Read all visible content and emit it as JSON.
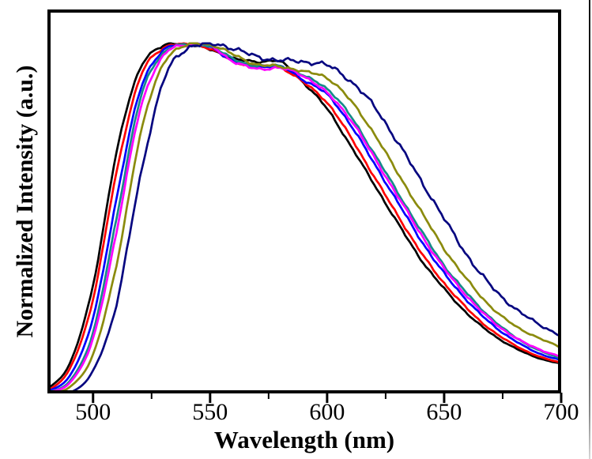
{
  "chart_data": {
    "type": "line",
    "title": "",
    "xlabel": "Wavelength (nm)",
    "ylabel": "Normalized Intensity (a.u.)",
    "xlim_nm": [
      480.5,
      700
    ],
    "ylim": [
      0,
      1.1
    ],
    "x_major_ticks": [
      500,
      550,
      600,
      650,
      700
    ],
    "x_minor_ticks": [
      525,
      575,
      625,
      675
    ],
    "y_ticks": [],
    "grid": false,
    "legend": "none",
    "frame": true,
    "axis_color": "#000000",
    "wavelengths_nm": [
      480,
      490,
      500,
      510,
      520,
      530,
      540,
      550,
      560,
      570,
      580,
      590,
      600,
      610,
      620,
      630,
      640,
      650,
      660,
      670,
      680,
      690,
      700
    ],
    "series": [
      {
        "name": "curve-1-black",
        "color": "#000000",
        "noise": 0.0035,
        "values": [
          0.01,
          0.085,
          0.31,
          0.69,
          0.93,
          0.995,
          1.0,
          0.985,
          0.96,
          0.95,
          0.95,
          0.89,
          0.815,
          0.71,
          0.6,
          0.49,
          0.385,
          0.3,
          0.228,
          0.172,
          0.131,
          0.102,
          0.085
        ]
      },
      {
        "name": "curve-2-red",
        "color": "#fe0000",
        "noise": 0.0035,
        "values": [
          0.004,
          0.07,
          0.27,
          0.633,
          0.903,
          0.989,
          1.0,
          0.988,
          0.951,
          0.938,
          0.933,
          0.891,
          0.833,
          0.735,
          0.622,
          0.512,
          0.405,
          0.316,
          0.242,
          0.182,
          0.139,
          0.107,
          0.088
        ]
      },
      {
        "name": "curve-3-blue",
        "color": "#0000fe",
        "noise": 0.004,
        "values": [
          0.004,
          0.05,
          0.216,
          0.557,
          0.867,
          0.981,
          1.0,
          0.992,
          0.952,
          0.935,
          0.936,
          0.898,
          0.856,
          0.77,
          0.66,
          0.55,
          0.44,
          0.344,
          0.265,
          0.2,
          0.152,
          0.116,
          0.095
        ]
      },
      {
        "name": "curve-4-darkcyan",
        "color": "#168a8a",
        "noise": 0.004,
        "values": [
          0.003,
          0.035,
          0.175,
          0.5,
          0.84,
          0.975,
          1.0,
          0.995,
          0.958,
          0.938,
          0.938,
          0.91,
          0.873,
          0.795,
          0.688,
          0.578,
          0.468,
          0.367,
          0.285,
          0.216,
          0.163,
          0.125,
          0.1
        ]
      },
      {
        "name": "curve-5-magenta",
        "color": "#fe00fe",
        "noise": 0.0045,
        "values": [
          0.003,
          0.03,
          0.157,
          0.462,
          0.81,
          0.966,
          0.999,
          0.996,
          0.951,
          0.93,
          0.932,
          0.909,
          0.86,
          0.785,
          0.677,
          0.567,
          0.457,
          0.358,
          0.277,
          0.21,
          0.162,
          0.128,
          0.105
        ]
      },
      {
        "name": "curve-6-darkyellow",
        "color": "#8b8b0e",
        "noise": 0.0045,
        "values": [
          0.002,
          0.018,
          0.112,
          0.367,
          0.735,
          0.944,
          0.997,
          0.999,
          0.971,
          0.942,
          0.937,
          0.922,
          0.904,
          0.839,
          0.745,
          0.633,
          0.523,
          0.415,
          0.324,
          0.248,
          0.195,
          0.16,
          0.132
        ]
      },
      {
        "name": "curve-7-navy",
        "color": "#060680",
        "noise": 0.0075,
        "values": [
          0.002,
          0.002,
          0.065,
          0.256,
          0.614,
          0.894,
          0.987,
          1.0,
          0.989,
          0.964,
          0.955,
          0.95,
          0.94,
          0.895,
          0.823,
          0.721,
          0.611,
          0.501,
          0.394,
          0.308,
          0.245,
          0.2,
          0.165
        ]
      }
    ]
  }
}
